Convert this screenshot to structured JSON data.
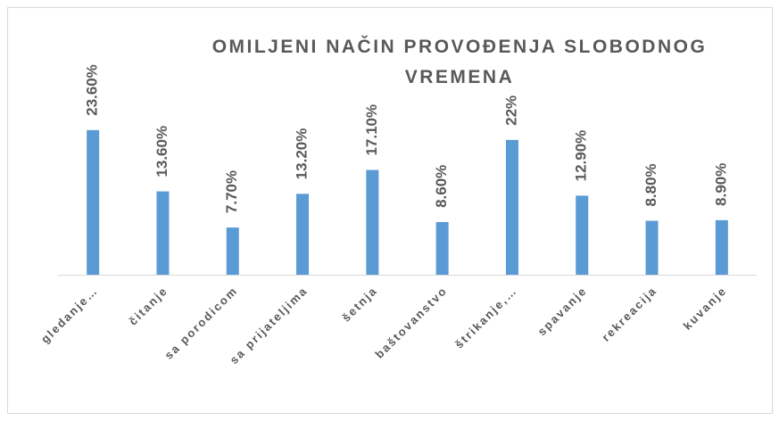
{
  "chart_data": {
    "type": "bar",
    "title": "OMILJENI NAČIN PROVOĐENJA SLOBODNOG VREMENA",
    "categories": [
      "gledanje…",
      "čitanje",
      "sa porodicom",
      "sa prijateljima",
      "šetnja",
      "baštovanstvo",
      "štrikanje,…",
      "spavanje",
      "rekreacija",
      "kuvanje"
    ],
    "values": [
      23.6,
      13.6,
      7.7,
      13.2,
      17.1,
      8.6,
      22,
      12.9,
      8.8,
      8.9
    ],
    "value_labels": [
      "23.60%",
      "13.60%",
      "7.70%",
      "13.20%",
      "17.10%",
      "8.60%",
      "22%",
      "12.90%",
      "8.80%",
      "8.90%"
    ],
    "color": "#5b9bd5"
  }
}
